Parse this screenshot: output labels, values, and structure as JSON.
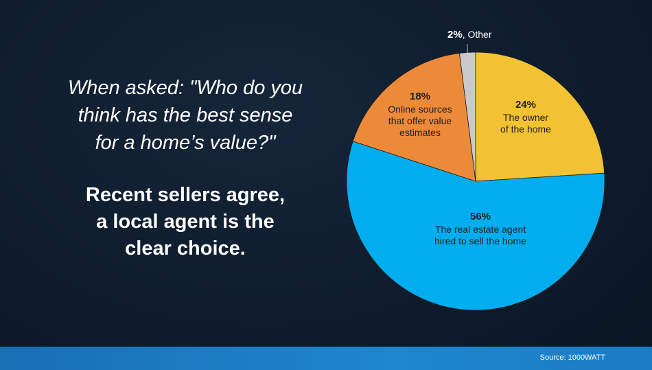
{
  "question_lines": [
    "When asked: \"Who do you",
    "think has the best sense",
    "for a home’s value?\""
  ],
  "statement_lines": [
    "Recent sellers agree,",
    "a local agent is the",
    "clear choice."
  ],
  "source": "Source: 1000WATT",
  "chart_data": {
    "type": "pie",
    "slices": [
      {
        "percent": "24%",
        "value": 24,
        "label_lines": [
          "The owner",
          "of the home"
        ],
        "color": "#f2c232"
      },
      {
        "percent": "56%",
        "value": 56,
        "label_lines": [
          "The real estate agent",
          "hired to sell the home"
        ],
        "color": "#00aeef"
      },
      {
        "percent": "18%",
        "value": 18,
        "label_lines": [
          "Online sources",
          "that offer value",
          "estimates"
        ],
        "color": "#ec8a3a"
      },
      {
        "percent": "2%",
        "value": 2,
        "label_lines": [
          ", Other"
        ],
        "color": "#c9c9c9"
      }
    ]
  }
}
